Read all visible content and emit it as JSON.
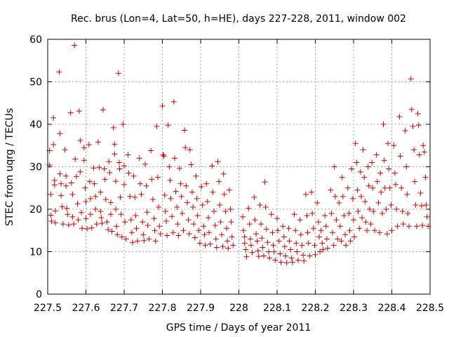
{
  "chart_data": {
    "type": "scatter",
    "title": "Rec. brus (Lon=4, Lat=50, h=HE), days 227-228, 2011, window 002",
    "xlabel": "GPS time / Days of year 2011",
    "ylabel": "STEC from uqrg / TECUs",
    "xlim": [
      227.5,
      228.5
    ],
    "ylim": [
      0,
      60
    ],
    "x_ticks": [
      "227.5",
      "227.6",
      "227.7",
      "227.8",
      "227.9",
      "228",
      "228.1",
      "228.2",
      "228.3",
      "228.4",
      "228.5"
    ],
    "y_ticks": [
      "0",
      "10",
      "20",
      "30",
      "40",
      "50",
      "60"
    ],
    "grid": true,
    "marker": "+",
    "marker_color": "#cc0000",
    "points": [
      [
        227.505,
        33.8
      ],
      [
        227.505,
        30.4
      ],
      [
        227.508,
        23.5
      ],
      [
        227.508,
        18.6
      ],
      [
        227.51,
        17.2
      ],
      [
        227.515,
        41.5
      ],
      [
        227.515,
        35.2
      ],
      [
        227.518,
        26.8
      ],
      [
        227.518,
        25.7
      ],
      [
        227.52,
        19.6
      ],
      [
        227.52,
        16.8
      ],
      [
        227.53,
        52.3
      ],
      [
        227.532,
        37.8
      ],
      [
        227.532,
        28.3
      ],
      [
        227.535,
        26.0
      ],
      [
        227.535,
        23.2
      ],
      [
        227.538,
        20.6
      ],
      [
        227.54,
        16.5
      ],
      [
        227.545,
        34.0
      ],
      [
        227.548,
        27.8
      ],
      [
        227.548,
        25.5
      ],
      [
        227.55,
        20.2
      ],
      [
        227.552,
        18.8
      ],
      [
        227.555,
        16.3
      ],
      [
        227.56,
        42.7
      ],
      [
        227.562,
        26.2
      ],
      [
        227.565,
        23.5
      ],
      [
        227.565,
        18.2
      ],
      [
        227.568,
        16.5
      ],
      [
        227.57,
        58.6
      ],
      [
        227.572,
        31.8
      ],
      [
        227.575,
        27.7
      ],
      [
        227.578,
        21.3
      ],
      [
        227.58,
        17.5
      ],
      [
        227.582,
        43.1
      ],
      [
        227.585,
        36.2
      ],
      [
        227.585,
        28.8
      ],
      [
        227.588,
        19.2
      ],
      [
        227.59,
        15.5
      ],
      [
        227.595,
        34.5
      ],
      [
        227.595,
        31.5
      ],
      [
        227.598,
        25.0
      ],
      [
        227.6,
        21.8
      ],
      [
        227.6,
        17.8
      ],
      [
        227.603,
        15.4
      ],
      [
        227.608,
        35.2
      ],
      [
        227.61,
        26.5
      ],
      [
        227.612,
        22.5
      ],
      [
        227.612,
        18.8
      ],
      [
        227.615,
        15.6
      ],
      [
        227.62,
        29.7
      ],
      [
        227.622,
        26.0
      ],
      [
        227.625,
        23.0
      ],
      [
        227.625,
        20.0
      ],
      [
        227.628,
        16.5
      ],
      [
        227.632,
        35.8
      ],
      [
        227.635,
        29.8
      ],
      [
        227.638,
        24.0
      ],
      [
        227.638,
        19.5
      ],
      [
        227.64,
        18.0
      ],
      [
        227.642,
        16.7
      ],
      [
        227.645,
        43.4
      ],
      [
        227.648,
        29.5
      ],
      [
        227.65,
        27.0
      ],
      [
        227.652,
        22.3
      ],
      [
        227.655,
        17.0
      ],
      [
        227.658,
        15.2
      ],
      [
        227.66,
        31.2
      ],
      [
        227.662,
        28.6
      ],
      [
        227.665,
        21.6
      ],
      [
        227.665,
        18.8
      ],
      [
        227.668,
        14.8
      ],
      [
        227.672,
        39.2
      ],
      [
        227.675,
        35.3
      ],
      [
        227.675,
        33.0
      ],
      [
        227.678,
        26.6
      ],
      [
        227.678,
        20.0
      ],
      [
        227.68,
        16.0
      ],
      [
        227.682,
        14.0
      ],
      [
        227.685,
        52.0
      ],
      [
        227.687,
        31.0
      ],
      [
        227.688,
        29.5
      ],
      [
        227.69,
        22.8
      ],
      [
        227.692,
        18.8
      ],
      [
        227.694,
        13.5
      ],
      [
        227.697,
        40.0
      ],
      [
        227.7,
        30.2
      ],
      [
        227.7,
        25.8
      ],
      [
        227.702,
        17.0
      ],
      [
        227.705,
        13.0
      ],
      [
        227.71,
        32.8
      ],
      [
        227.712,
        28.5
      ],
      [
        227.715,
        23.0
      ],
      [
        227.718,
        17.5
      ],
      [
        227.72,
        14.5
      ],
      [
        227.722,
        12.2
      ],
      [
        227.725,
        27.8
      ],
      [
        227.728,
        22.8
      ],
      [
        227.73,
        18.5
      ],
      [
        227.732,
        15.5
      ],
      [
        227.735,
        12.5
      ],
      [
        227.74,
        32.0
      ],
      [
        227.742,
        26.0
      ],
      [
        227.745,
        23.5
      ],
      [
        227.748,
        17.0
      ],
      [
        227.75,
        14.0
      ],
      [
        227.752,
        12.6
      ],
      [
        227.755,
        30.6
      ],
      [
        227.758,
        25.5
      ],
      [
        227.76,
        19.3
      ],
      [
        227.762,
        16.2
      ],
      [
        227.765,
        13.0
      ],
      [
        227.77,
        33.8
      ],
      [
        227.772,
        27.0
      ],
      [
        227.775,
        22.3
      ],
      [
        227.778,
        17.8
      ],
      [
        227.78,
        15.0
      ],
      [
        227.782,
        12.5
      ],
      [
        227.785,
        39.5
      ],
      [
        227.788,
        27.5
      ],
      [
        227.79,
        20.5
      ],
      [
        227.792,
        16.0
      ],
      [
        227.795,
        14.2
      ],
      [
        227.8,
        44.3
      ],
      [
        227.802,
        32.8
      ],
      [
        227.804,
        32.5
      ],
      [
        227.806,
        23.3
      ],
      [
        227.808,
        19.5
      ],
      [
        227.81,
        17.2
      ],
      [
        227.812,
        13.8
      ],
      [
        227.815,
        39.8
      ],
      [
        227.818,
        30.0
      ],
      [
        227.82,
        26.8
      ],
      [
        227.822,
        22.5
      ],
      [
        227.825,
        18.3
      ],
      [
        227.828,
        14.5
      ],
      [
        227.83,
        45.3
      ],
      [
        227.832,
        32.0
      ],
      [
        227.835,
        24.2
      ],
      [
        227.838,
        20.5
      ],
      [
        227.84,
        16.5
      ],
      [
        227.842,
        13.8
      ],
      [
        227.845,
        29.6
      ],
      [
        227.848,
        26.0
      ],
      [
        227.85,
        23.0
      ],
      [
        227.852,
        19.0
      ],
      [
        227.855,
        15.0
      ],
      [
        227.858,
        38.6
      ],
      [
        227.86,
        34.5
      ],
      [
        227.862,
        25.5
      ],
      [
        227.865,
        21.6
      ],
      [
        227.868,
        17.5
      ],
      [
        227.87,
        14.2
      ],
      [
        227.872,
        34.0
      ],
      [
        227.875,
        30.5
      ],
      [
        227.878,
        24.0
      ],
      [
        227.88,
        20.5
      ],
      [
        227.882,
        16.5
      ],
      [
        227.885,
        13.3
      ],
      [
        227.888,
        27.8
      ],
      [
        227.89,
        22.5
      ],
      [
        227.892,
        18.5
      ],
      [
        227.895,
        15.0
      ],
      [
        227.898,
        12.0
      ],
      [
        227.902,
        25.3
      ],
      [
        227.905,
        21.0
      ],
      [
        227.908,
        16.0
      ],
      [
        227.91,
        14.0
      ],
      [
        227.912,
        11.5
      ],
      [
        227.915,
        26.0
      ],
      [
        227.918,
        21.8
      ],
      [
        227.92,
        18.0
      ],
      [
        227.922,
        14.5
      ],
      [
        227.925,
        11.8
      ],
      [
        227.93,
        30.2
      ],
      [
        227.932,
        24.0
      ],
      [
        227.935,
        19.5
      ],
      [
        227.938,
        16.2
      ],
      [
        227.94,
        13.0
      ],
      [
        227.942,
        11.0
      ],
      [
        227.945,
        31.2
      ],
      [
        227.948,
        26.5
      ],
      [
        227.95,
        21.0
      ],
      [
        227.952,
        17.0
      ],
      [
        227.955,
        14.0
      ],
      [
        227.958,
        11.2
      ],
      [
        227.96,
        28.3
      ],
      [
        227.962,
        23.5
      ],
      [
        227.965,
        19.5
      ],
      [
        227.968,
        15.5
      ],
      [
        227.97,
        12.5
      ],
      [
        227.972,
        10.8
      ],
      [
        227.975,
        24.5
      ],
      [
        227.978,
        20.0
      ],
      [
        227.98,
        17.0
      ],
      [
        227.982,
        13.5
      ],
      [
        227.985,
        11.5
      ],
      [
        228.01,
        18.2
      ],
      [
        228.012,
        15.0
      ],
      [
        228.015,
        13.5
      ],
      [
        228.015,
        12.0
      ],
      [
        228.018,
        10.5
      ],
      [
        228.02,
        8.8
      ],
      [
        228.025,
        20.2
      ],
      [
        228.028,
        16.5
      ],
      [
        228.03,
        13.0
      ],
      [
        228.032,
        11.5
      ],
      [
        228.035,
        9.8
      ],
      [
        228.04,
        22.8
      ],
      [
        228.042,
        17.5
      ],
      [
        228.045,
        14.2
      ],
      [
        228.048,
        12.5
      ],
      [
        228.05,
        10.2
      ],
      [
        228.052,
        8.9
      ],
      [
        228.055,
        21.0
      ],
      [
        228.058,
        16.5
      ],
      [
        228.06,
        13.2
      ],
      [
        228.062,
        11.0
      ],
      [
        228.065,
        9.0
      ],
      [
        228.068,
        26.4
      ],
      [
        228.07,
        20.5
      ],
      [
        228.072,
        15.3
      ],
      [
        228.075,
        12.2
      ],
      [
        228.078,
        10.0
      ],
      [
        228.08,
        8.5
      ],
      [
        228.085,
        18.8
      ],
      [
        228.088,
        14.5
      ],
      [
        228.09,
        11.5
      ],
      [
        228.092,
        10.0
      ],
      [
        228.095,
        8.0
      ],
      [
        228.1,
        17.8
      ],
      [
        228.102,
        15.0
      ],
      [
        228.105,
        12.5
      ],
      [
        228.108,
        9.5
      ],
      [
        228.11,
        7.5
      ],
      [
        228.115,
        16.0
      ],
      [
        228.118,
        13.5
      ],
      [
        228.12,
        11.2
      ],
      [
        228.122,
        9.0
      ],
      [
        228.125,
        7.4
      ],
      [
        228.13,
        15.5
      ],
      [
        228.132,
        12.5
      ],
      [
        228.135,
        10.5
      ],
      [
        228.138,
        8.5
      ],
      [
        228.14,
        7.5
      ],
      [
        228.145,
        18.8
      ],
      [
        228.148,
        15.0
      ],
      [
        228.15,
        12.0
      ],
      [
        228.152,
        10.0
      ],
      [
        228.155,
        8.0
      ],
      [
        228.16,
        17.5
      ],
      [
        228.162,
        14.0
      ],
      [
        228.165,
        11.5
      ],
      [
        228.168,
        9.2
      ],
      [
        228.17,
        7.8
      ],
      [
        228.175,
        23.5
      ],
      [
        228.178,
        18.5
      ],
      [
        228.18,
        14.5
      ],
      [
        228.182,
        12.0
      ],
      [
        228.185,
        9.0
      ],
      [
        228.19,
        24.0
      ],
      [
        228.192,
        19.0
      ],
      [
        228.195,
        15.5
      ],
      [
        228.198,
        11.5
      ],
      [
        228.2,
        9.3
      ],
      [
        228.205,
        21.5
      ],
      [
        228.208,
        17.0
      ],
      [
        228.21,
        13.5
      ],
      [
        228.212,
        10.0
      ],
      [
        228.215,
        15.0
      ],
      [
        228.218,
        12.0
      ],
      [
        228.22,
        10.5
      ],
      [
        228.225,
        18.5
      ],
      [
        228.228,
        16.0
      ],
      [
        228.23,
        13.0
      ],
      [
        228.232,
        10.8
      ],
      [
        228.24,
        24.5
      ],
      [
        228.242,
        19.0
      ],
      [
        228.245,
        14.5
      ],
      [
        228.248,
        11.5
      ],
      [
        228.25,
        30.0
      ],
      [
        228.252,
        23.0
      ],
      [
        228.255,
        17.5
      ],
      [
        228.258,
        13.0
      ],
      [
        228.262,
        21.5
      ],
      [
        228.265,
        16.0
      ],
      [
        228.268,
        12.5
      ],
      [
        228.27,
        27.5
      ],
      [
        228.272,
        23.0
      ],
      [
        228.275,
        18.5
      ],
      [
        228.278,
        14.0
      ],
      [
        228.28,
        11.5
      ],
      [
        228.285,
        25.0
      ],
      [
        228.288,
        19.0
      ],
      [
        228.29,
        15.0
      ],
      [
        228.292,
        12.5
      ],
      [
        228.295,
        29.5
      ],
      [
        228.298,
        22.5
      ],
      [
        228.3,
        17.5
      ],
      [
        228.302,
        13.5
      ],
      [
        228.305,
        35.5
      ],
      [
        228.308,
        31.0
      ],
      [
        228.31,
        24.5
      ],
      [
        228.312,
        19.5
      ],
      [
        228.315,
        15.5
      ],
      [
        228.318,
        28.8
      ],
      [
        228.32,
        23.0
      ],
      [
        228.322,
        18.0
      ],
      [
        228.325,
        34.0
      ],
      [
        228.328,
        27.5
      ],
      [
        228.33,
        21.8
      ],
      [
        228.332,
        17.0
      ],
      [
        228.335,
        15.0
      ],
      [
        228.338,
        30.0
      ],
      [
        228.34,
        25.5
      ],
      [
        228.342,
        20.0
      ],
      [
        228.345,
        16.5
      ],
      [
        228.348,
        31.0
      ],
      [
        228.35,
        25.0
      ],
      [
        228.352,
        19.5
      ],
      [
        228.355,
        15.0
      ],
      [
        228.36,
        32.8
      ],
      [
        228.362,
        26.5
      ],
      [
        228.365,
        21.5
      ],
      [
        228.368,
        14.5
      ],
      [
        228.37,
        28.5
      ],
      [
        228.372,
        24.0
      ],
      [
        228.375,
        19.0
      ],
      [
        228.378,
        40.0
      ],
      [
        228.38,
        31.5
      ],
      [
        228.382,
        25.0
      ],
      [
        228.385,
        20.0
      ],
      [
        228.388,
        14.2
      ],
      [
        228.39,
        35.5
      ],
      [
        228.392,
        29.5
      ],
      [
        228.395,
        25.0
      ],
      [
        228.398,
        21.0
      ],
      [
        228.4,
        15.0
      ],
      [
        228.405,
        35.0
      ],
      [
        228.408,
        28.5
      ],
      [
        228.41,
        25.8
      ],
      [
        228.412,
        20.0
      ],
      [
        228.415,
        16.0
      ],
      [
        228.42,
        41.8
      ],
      [
        228.422,
        32.5
      ],
      [
        228.425,
        25.0
      ],
      [
        228.428,
        19.5
      ],
      [
        228.43,
        16.5
      ],
      [
        228.435,
        38.5
      ],
      [
        228.438,
        30.0
      ],
      [
        228.44,
        23.5
      ],
      [
        228.442,
        19.0
      ],
      [
        228.445,
        16.0
      ],
      [
        228.45,
        50.7
      ],
      [
        228.452,
        43.5
      ],
      [
        228.455,
        39.5
      ],
      [
        228.458,
        34.0
      ],
      [
        228.46,
        26.5
      ],
      [
        228.462,
        21.0
      ],
      [
        228.465,
        16.0
      ],
      [
        228.468,
        42.5
      ],
      [
        228.47,
        39.8
      ],
      [
        228.472,
        32.8
      ],
      [
        228.475,
        23.8
      ],
      [
        228.478,
        20.8
      ],
      [
        228.48,
        16.2
      ],
      [
        228.482,
        35.0
      ],
      [
        228.485,
        33.5
      ],
      [
        228.488,
        27.5
      ],
      [
        228.49,
        21.0
      ],
      [
        228.492,
        18.2
      ],
      [
        228.495,
        16.0
      ]
    ]
  }
}
